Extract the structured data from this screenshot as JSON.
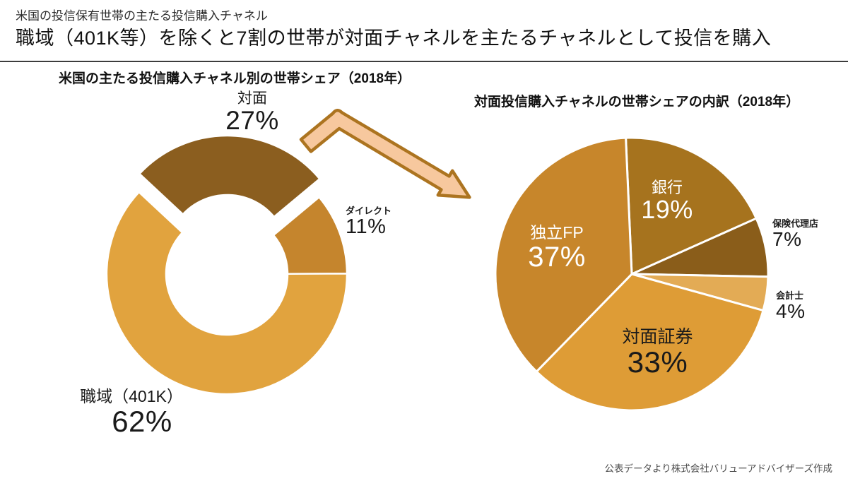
{
  "unit": "%",
  "header": {
    "subtitle": "米国の投信保有世帯の主たる投信購入チャネル",
    "title": "職域（401K等）を除くと7割の世帯が対面チャネルを主たるチャネルとして投信を購入"
  },
  "source_note": "公表データより株式会社バリューアドバイザーズ作成",
  "arrow": {
    "fill": "#F7C89E",
    "stroke": "#AC7420"
  },
  "chart_data": [
    {
      "type": "pie",
      "subtype": "donut",
      "title": "米国の主たる投信購入チャネル別の世帯シェア（2018年）",
      "legend": "none",
      "labels_position": "outside",
      "start_angle_deg": -47,
      "slices": [
        {
          "label": "対面",
          "value": 27,
          "color": "#8B5E1F",
          "exploded": true
        },
        {
          "label": "ダイレクト",
          "value": 11,
          "color": "#C5852D"
        },
        {
          "label": "職域（401K）",
          "value": 62,
          "color": "#E1A33E"
        }
      ]
    },
    {
      "type": "pie",
      "title": "対面投信購入チャネルの世帯シェアの内訳（2018年）",
      "legend": "none",
      "labels_position": "mixed",
      "start_angle_deg": -2.5,
      "slices": [
        {
          "label": "銀行",
          "value": 19,
          "color": "#A6731E",
          "label_color": "#ffffff"
        },
        {
          "label": "保険代理店",
          "value": 7,
          "color": "#8A5D1A",
          "label_color": "#1a1a1a"
        },
        {
          "label": "会計士",
          "value": 4,
          "color": "#E3AB55",
          "label_color": "#1a1a1a"
        },
        {
          "label": "対面証券",
          "value": 33,
          "color": "#DE9C36",
          "label_color": "#1a1a1a"
        },
        {
          "label": "独立FP",
          "value": 37,
          "color": "#C7862B",
          "label_color": "#ffffff"
        }
      ]
    }
  ]
}
